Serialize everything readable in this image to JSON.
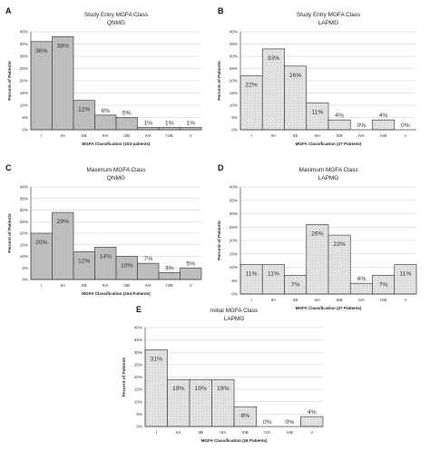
{
  "chart_data": [
    {
      "panel": "A",
      "type": "bar",
      "title": "Study Entry MGFA Class",
      "subtitle": "QNMG",
      "ylabel": "Percent of Patients",
      "xlabel": "MGFA Classification (153 patients)",
      "categories": [
        "I",
        "IIA",
        "IIB",
        "IIIA",
        "IIIB",
        "IVA",
        "IVB",
        "V"
      ],
      "values": [
        36,
        38,
        12,
        6,
        5,
        1,
        1,
        1
      ],
      "value_labels": [
        "36%",
        "38%",
        "12%",
        "6%",
        "5%",
        "1%",
        "1%",
        "1%"
      ],
      "ylim": [
        0,
        40
      ],
      "yticks": [
        "0%",
        "5%",
        "10%",
        "15%",
        "20%",
        "25%",
        "30%",
        "35%",
        "40%"
      ],
      "bar_color": "#bdbdbd",
      "pattern": "solid",
      "grid": true
    },
    {
      "panel": "B",
      "type": "bar",
      "title": "Study Entry MGFA Class",
      "subtitle": "LAPMG",
      "ylabel": "Percent of Patients",
      "xlabel": "MGFA Classification (27 Patients)",
      "categories": [
        "I",
        "IIA",
        "IIB",
        "IIIA",
        "IIIB",
        "IVA",
        "IVB",
        "V"
      ],
      "values": [
        22,
        33,
        26,
        11,
        4,
        0,
        4,
        0
      ],
      "value_labels": [
        "22%",
        "33%",
        "26%",
        "11%",
        "4%",
        "0%",
        "4%",
        "0%"
      ],
      "ylim": [
        0,
        40
      ],
      "yticks": [
        "0%",
        "5%",
        "10%",
        "15%",
        "20%",
        "25%",
        "30%",
        "35%",
        "40%"
      ],
      "bar_color": "#e4e4e4",
      "pattern": "dotted",
      "grid": true
    },
    {
      "panel": "C",
      "type": "bar",
      "title": "Maximum MGFA Class",
      "subtitle": "QNMG",
      "ylabel": "Percent of Patients",
      "xlabel": "MGFA Classification (154 Patients)",
      "categories": [
        "I",
        "IIA",
        "IIB",
        "IIIA",
        "IIIB",
        "IVA",
        "IVB",
        "V"
      ],
      "values": [
        20,
        29,
        12,
        14,
        10,
        7,
        3,
        5
      ],
      "value_labels": [
        "20%",
        "29%",
        "12%",
        "14%",
        "10%",
        "7%",
        "3%",
        "5%"
      ],
      "ylim": [
        0,
        40
      ],
      "yticks": [
        "0%",
        "5%",
        "10%",
        "15%",
        "20%",
        "25%",
        "30%",
        "35%",
        "40%"
      ],
      "bar_color": "#bdbdbd",
      "pattern": "solid",
      "grid": true
    },
    {
      "panel": "D",
      "type": "bar",
      "title": "Maximum MGFA Class",
      "subtitle": "LAPMG",
      "ylabel": "Percent of Patients",
      "xlabel": "MGFA Classification (27 Patients)",
      "categories": [
        "I",
        "IIA",
        "IIB",
        "IIIA",
        "IIIB",
        "IVA",
        "IVB",
        "V"
      ],
      "values": [
        11,
        11,
        7,
        26,
        22,
        4,
        7,
        11
      ],
      "value_labels": [
        "11%",
        "11%",
        "7%",
        "26%",
        "22%",
        "4%",
        "7%",
        "11%"
      ],
      "ylim": [
        0,
        40
      ],
      "yticks": [
        "0%",
        "5%",
        "10%",
        "15%",
        "20%",
        "25%",
        "30%",
        "35%",
        "40%"
      ],
      "bar_color": "#e4e4e4",
      "pattern": "dotted",
      "grid": true
    },
    {
      "panel": "E",
      "type": "bar",
      "title": "Initial MGFA Class",
      "subtitle": "LAPMG",
      "ylabel": "Percent of Patients",
      "xlabel": "MGFA Classification (26 Patients)",
      "categories": [
        "I",
        "IIA",
        "IIB",
        "IIIA",
        "IIIB",
        "IVA",
        "IVB",
        "V"
      ],
      "values": [
        31,
        19,
        19,
        19,
        8,
        0,
        0,
        4
      ],
      "value_labels": [
        "31%",
        "19%",
        "19%",
        "19%",
        "8%",
        "0%",
        "0%",
        "4%"
      ],
      "ylim": [
        0,
        40
      ],
      "yticks": [
        "0%",
        "5%",
        "10%",
        "15%",
        "20%",
        "25%",
        "30%",
        "35%",
        "40%"
      ],
      "bar_color": "#e4e4e4",
      "pattern": "dotted",
      "grid": true
    }
  ]
}
